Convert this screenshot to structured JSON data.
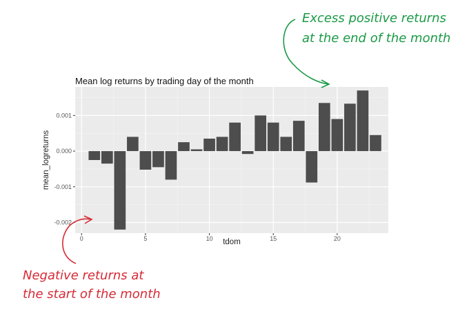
{
  "colors": {
    "panel_bg": "#ebebeb",
    "grid_major": "#ffffff",
    "grid_minor": "#f3f3f3",
    "bar_fill": "#4d4d4d",
    "annotation_green": "#1a9a45",
    "annotation_red": "#d62a35"
  },
  "annotations": {
    "top_line1": "Excess positive returns",
    "top_line2": "at the end of the month",
    "bottom_line1": "Negative returns at",
    "bottom_line2": "the start of the month"
  },
  "chart_data": {
    "type": "bar",
    "title": "Mean log returns by trading day of the month",
    "xlabel": "tdom",
    "ylabel": "mean_logreturns",
    "xlim": [
      -0.5,
      24
    ],
    "ylim": [
      -0.0023,
      0.0018
    ],
    "x_ticks": [
      0,
      5,
      10,
      15,
      20
    ],
    "x_tick_labels": [
      "0",
      "5",
      "10",
      "15",
      "20"
    ],
    "y_ticks": [
      -0.002,
      -0.001,
      0.0,
      0.001
    ],
    "y_tick_labels": [
      "-0.002",
      "-0.001",
      "0.000",
      "0.001"
    ],
    "grid": true,
    "x": [
      1,
      2,
      3,
      4,
      5,
      6,
      7,
      8,
      9,
      10,
      11,
      12,
      13,
      14,
      15,
      16,
      17,
      18,
      19,
      20,
      21,
      22,
      23
    ],
    "values": [
      -0.00025,
      -0.00035,
      -0.0022,
      0.0004,
      -0.00052,
      -0.00045,
      -0.0008,
      0.00025,
      5e-05,
      0.00035,
      0.0004,
      0.0008,
      -8e-05,
      0.001,
      0.0008,
      0.0004,
      0.00085,
      -0.00088,
      0.00135,
      0.0009,
      0.00133,
      0.0017,
      0.00045
    ]
  }
}
